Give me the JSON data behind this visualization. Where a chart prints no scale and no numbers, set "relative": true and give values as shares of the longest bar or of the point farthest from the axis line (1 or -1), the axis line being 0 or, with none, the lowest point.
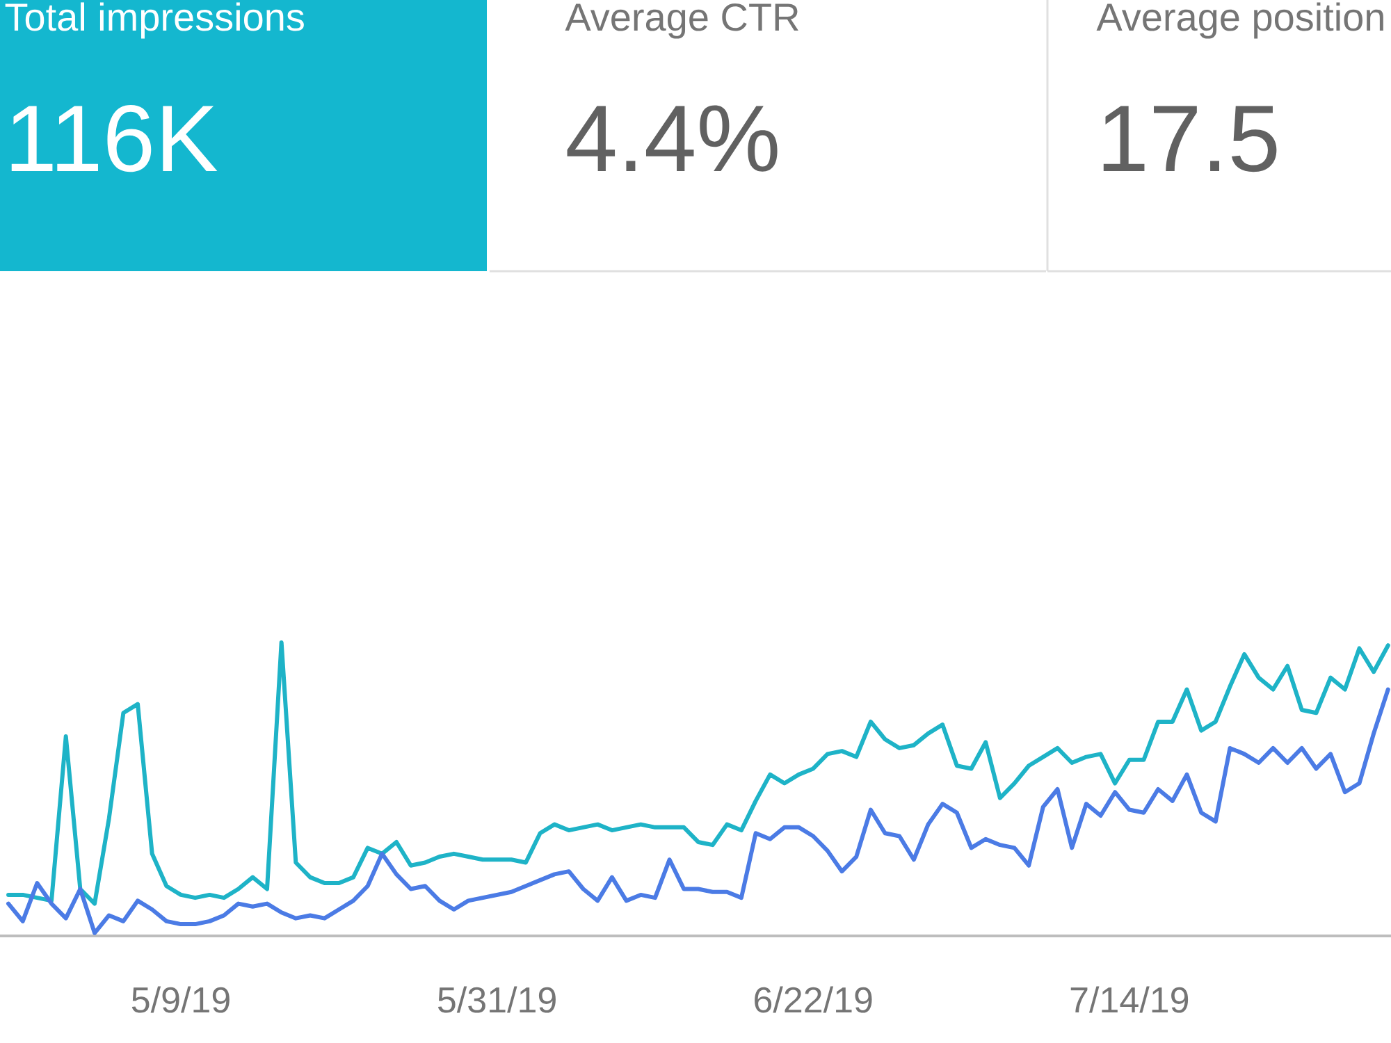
{
  "chart_data": [
    {
      "type": "other",
      "title": "Total impressions",
      "annotations": [
        "116K"
      ],
      "color": "#14b7cf"
    },
    {
      "type": "other",
      "title": "Average CTR",
      "annotations": [
        "4.4%"
      ]
    },
    {
      "type": "other",
      "title": "Average position",
      "annotations": [
        "17.5"
      ]
    },
    {
      "type": "line",
      "relative": true,
      "line_style": "solid",
      "x": [
        "2019-04-27",
        "2019-04-28",
        "2019-04-29",
        "2019-04-30",
        "2019-05-01",
        "2019-05-02",
        "2019-05-03",
        "2019-05-04",
        "2019-05-05",
        "2019-05-06",
        "2019-05-07",
        "2019-05-08",
        "2019-05-09",
        "2019-05-10",
        "2019-05-11",
        "2019-05-12",
        "2019-05-13",
        "2019-05-14",
        "2019-05-15",
        "2019-05-16",
        "2019-05-17",
        "2019-05-18",
        "2019-05-19",
        "2019-05-20",
        "2019-05-21",
        "2019-05-22",
        "2019-05-23",
        "2019-05-24",
        "2019-05-25",
        "2019-05-26",
        "2019-05-27",
        "2019-05-28",
        "2019-05-29",
        "2019-05-30",
        "2019-05-31",
        "2019-06-01",
        "2019-06-02",
        "2019-06-03",
        "2019-06-04",
        "2019-06-05",
        "2019-06-06",
        "2019-06-07",
        "2019-06-08",
        "2019-06-09",
        "2019-06-10",
        "2019-06-11",
        "2019-06-12",
        "2019-06-13",
        "2019-06-14",
        "2019-06-15",
        "2019-06-16",
        "2019-06-17",
        "2019-06-18",
        "2019-06-19",
        "2019-06-20",
        "2019-06-21",
        "2019-06-22",
        "2019-06-23",
        "2019-06-24",
        "2019-06-25",
        "2019-06-26",
        "2019-06-27",
        "2019-06-28",
        "2019-06-29",
        "2019-06-30",
        "2019-07-01",
        "2019-07-02",
        "2019-07-03",
        "2019-07-04",
        "2019-07-05",
        "2019-07-06",
        "2019-07-07",
        "2019-07-08",
        "2019-07-09",
        "2019-07-10",
        "2019-07-11",
        "2019-07-12",
        "2019-07-13",
        "2019-07-14",
        "2019-07-15",
        "2019-07-16",
        "2019-07-17",
        "2019-07-18",
        "2019-07-19",
        "2019-07-20",
        "2019-07-21",
        "2019-07-22",
        "2019-07-23",
        "2019-07-24",
        "2019-07-25",
        "2019-07-26",
        "2019-07-27",
        "2019-07-28",
        "2019-07-29",
        "2019-07-30",
        "2019-07-31",
        "2019-08-01"
      ],
      "xlim": [
        "2019-04-26T10:00",
        "2019-08-01T05:00"
      ],
      "xticks": [
        {
          "value": "2019-05-09",
          "label": "5/9/19"
        },
        {
          "value": "2019-05-31",
          "label": "5/31/19"
        },
        {
          "value": "2019-06-22",
          "label": "6/22/19"
        },
        {
          "value": "2019-07-14",
          "label": "7/14/19"
        }
      ],
      "series": [
        {
          "color": "#1eb3c7",
          "values": [
            0.14,
            0.14,
            0.13,
            0.12,
            0.68,
            0.16,
            0.11,
            0.4,
            0.76,
            0.79,
            0.28,
            0.17,
            0.14,
            0.13,
            0.14,
            0.13,
            0.16,
            0.2,
            0.16,
            1.0,
            0.25,
            0.2,
            0.18,
            0.18,
            0.2,
            0.3,
            0.28,
            0.32,
            0.24,
            0.25,
            0.27,
            0.28,
            0.27,
            0.26,
            0.26,
            0.26,
            0.25,
            0.35,
            0.38,
            0.36,
            0.37,
            0.38,
            0.36,
            0.37,
            0.38,
            0.37,
            0.37,
            0.37,
            0.32,
            0.31,
            0.38,
            0.36,
            0.46,
            0.55,
            0.52,
            0.55,
            0.57,
            0.62,
            0.63,
            0.61,
            0.73,
            0.67,
            0.64,
            0.65,
            0.69,
            0.72,
            0.58,
            0.57,
            0.66,
            0.47,
            0.52,
            0.58,
            0.61,
            0.64,
            0.59,
            0.61,
            0.62,
            0.52,
            0.6,
            0.6,
            0.73,
            0.73,
            0.84,
            0.7,
            0.73,
            0.85,
            0.96,
            0.88,
            0.84,
            0.92,
            0.77,
            0.76,
            0.88,
            0.84,
            0.98,
            0.9,
            0.99
          ]
        },
        {
          "color": "#4b7be5",
          "values": [
            0.11,
            0.05,
            0.18,
            0.11,
            0.06,
            0.16,
            0.01,
            0.07,
            0.05,
            0.12,
            0.09,
            0.05,
            0.04,
            0.04,
            0.05,
            0.07,
            0.11,
            0.1,
            0.11,
            0.08,
            0.06,
            0.07,
            0.06,
            0.09,
            0.12,
            0.17,
            0.28,
            0.21,
            0.16,
            0.17,
            0.12,
            0.09,
            0.12,
            0.13,
            0.14,
            0.15,
            0.17,
            0.19,
            0.21,
            0.22,
            0.16,
            0.12,
            0.2,
            0.12,
            0.14,
            0.13,
            0.26,
            0.16,
            0.16,
            0.15,
            0.15,
            0.13,
            0.35,
            0.33,
            0.37,
            0.37,
            0.34,
            0.29,
            0.22,
            0.27,
            0.43,
            0.35,
            0.34,
            0.26,
            0.38,
            0.45,
            0.42,
            0.3,
            0.33,
            0.31,
            0.3,
            0.24,
            0.44,
            0.5,
            0.3,
            0.45,
            0.41,
            0.49,
            0.43,
            0.42,
            0.5,
            0.46,
            0.55,
            0.42,
            0.39,
            0.64,
            0.62,
            0.59,
            0.64,
            0.59,
            0.64,
            0.57,
            0.62,
            0.49,
            0.52,
            0.69,
            0.84
          ]
        }
      ]
    }
  ]
}
